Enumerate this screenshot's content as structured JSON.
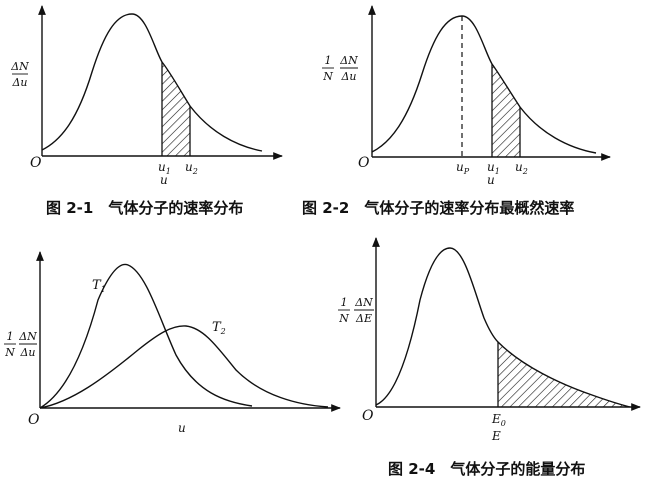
{
  "figures": [
    {
      "caption": "图 2-1　气体分子的速率分布",
      "ylabel": {
        "num": "ΔN",
        "den": "Δu"
      },
      "origin": "O",
      "xlabel": "u",
      "ticks": [
        {
          "main": "u",
          "sub": "1"
        },
        {
          "main": "u",
          "sub": "2"
        }
      ]
    },
    {
      "caption": "图 2-2　气体分子的速率分布最概然速率",
      "ylabel": {
        "prefix_num": "1",
        "prefix_den": "N",
        "num": "ΔN",
        "den": "Δu"
      },
      "origin": "O",
      "xlabel": "u",
      "ticks": [
        {
          "main": "u",
          "sub": "P"
        },
        {
          "main": "u",
          "sub": "1"
        },
        {
          "main": "u",
          "sub": "2"
        }
      ]
    },
    {
      "caption": "",
      "ylabel": {
        "prefix_num": "1",
        "prefix_den": "N",
        "num": "ΔN",
        "den": "Δu"
      },
      "origin": "O",
      "xlabel": "u",
      "curve_labels": [
        {
          "main": "T",
          "sub": "1"
        },
        {
          "main": "T",
          "sub": "2"
        }
      ]
    },
    {
      "caption": "图 2-4　气体分子的能量分布",
      "ylabel": {
        "prefix_num": "1",
        "prefix_den": "N",
        "num": "ΔN",
        "den": "ΔE"
      },
      "origin": "O",
      "xlabel": "E",
      "ticks": [
        {
          "main": "E",
          "sub": "0"
        }
      ]
    }
  ],
  "style": {
    "ink": "#111111",
    "background": "#ffffff"
  }
}
